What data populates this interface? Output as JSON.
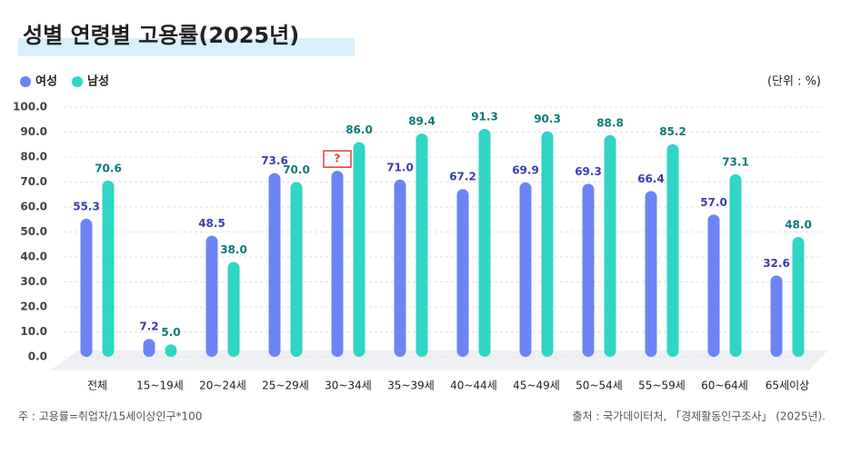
{
  "chart_data": {
    "type": "bar",
    "title": "성별 연령별 고용률(2025년)",
    "unit_note": "(단위 : %)",
    "categories": [
      "전체",
      "15~19세",
      "20~24세",
      "25~29세",
      "30~34세",
      "35~39세",
      "40~44세",
      "45~49세",
      "50~54세",
      "55~59세",
      "60~64세",
      "65세이상"
    ],
    "series": [
      {
        "name": "여성",
        "color": "#6c84f4",
        "label_color": "#3a3fae",
        "values": [
          55.3,
          7.2,
          48.5,
          73.6,
          74.5,
          71.0,
          67.2,
          69.9,
          69.3,
          66.4,
          57.0,
          32.6
        ],
        "value_labels": [
          "55.3",
          "7.2",
          "48.5",
          "73.6",
          "?",
          "71.0",
          "67.2",
          "69.9",
          "69.3",
          "66.4",
          "57.0",
          "32.6"
        ]
      },
      {
        "name": "남성",
        "color": "#30d5c6",
        "label_color": "#0f7a78",
        "values": [
          70.6,
          5.0,
          38.0,
          70.0,
          86.0,
          89.4,
          91.3,
          90.3,
          88.8,
          85.2,
          73.1,
          48.0
        ],
        "value_labels": [
          "70.6",
          "5.0",
          "38.0",
          "70.0",
          "86.0",
          "89.4",
          "91.3",
          "90.3",
          "88.8",
          "85.2",
          "73.1",
          "48.0"
        ]
      }
    ],
    "ylim": [
      0,
      100
    ],
    "yticks": [
      {
        "value": 0,
        "label": "0.0"
      },
      {
        "value": 10,
        "label": "10.0"
      },
      {
        "value": 20,
        "label": "20.0"
      },
      {
        "value": 30,
        "label": "30.0"
      },
      {
        "value": 40,
        "label": "40.0"
      },
      {
        "value": 50,
        "label": "50.0"
      },
      {
        "value": 60,
        "label": "60.0"
      },
      {
        "value": 70,
        "label": "70.0"
      },
      {
        "value": 80,
        "label": "80.0"
      },
      {
        "value": 90,
        "label": "90.0"
      },
      {
        "value": 100,
        "label": "100.0"
      }
    ],
    "grid": true,
    "footnote": "주 : 고용률=취업자/15세이상인구*100",
    "source": "출처 : 국가데이터처, 「경제활동인구조사」 (2025년)."
  }
}
